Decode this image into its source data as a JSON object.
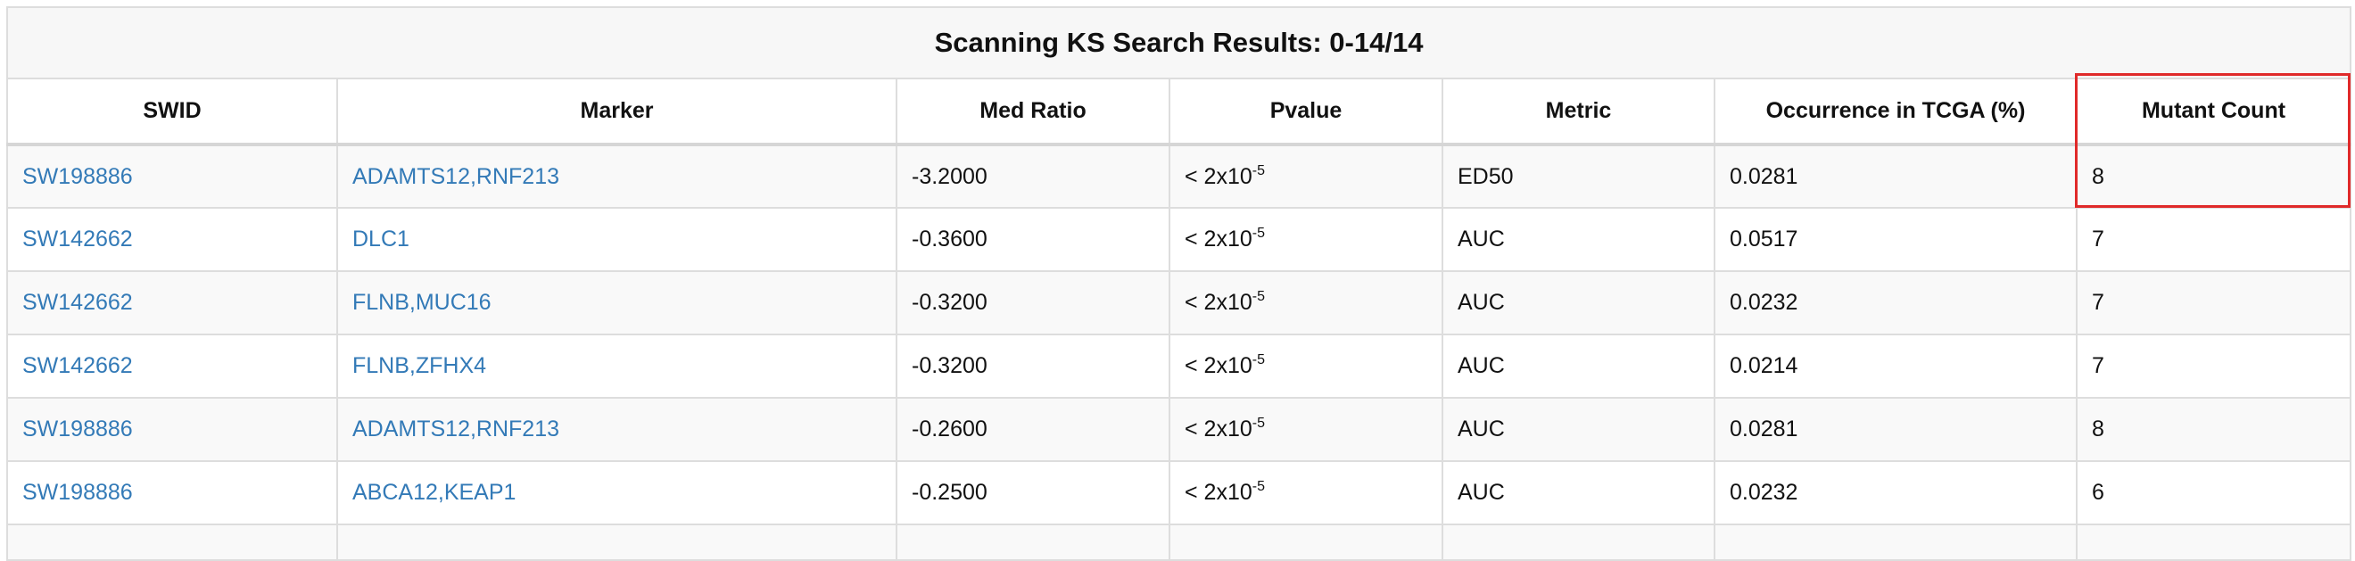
{
  "caption": "Scanning KS Search Results: 0-14/14",
  "columns": [
    "SWID",
    "Marker",
    "Med Ratio",
    "Pvalue",
    "Metric",
    "Occurrence in TCGA (%)",
    "Mutant Count"
  ],
  "pvalue_format": {
    "prefix": "< 2x10",
    "exponent": "-5"
  },
  "rows": [
    {
      "swid": "SW198886",
      "marker": "ADAMTS12,RNF213",
      "med_ratio": "-3.2000",
      "metric": "ED50",
      "occurrence": "0.0281",
      "mutant_count": "8"
    },
    {
      "swid": "SW142662",
      "marker": "DLC1",
      "med_ratio": "-0.3600",
      "metric": "AUC",
      "occurrence": "0.0517",
      "mutant_count": "7"
    },
    {
      "swid": "SW142662",
      "marker": "FLNB,MUC16",
      "med_ratio": "-0.3200",
      "metric": "AUC",
      "occurrence": "0.0232",
      "mutant_count": "7"
    },
    {
      "swid": "SW142662",
      "marker": "FLNB,ZFHX4",
      "med_ratio": "-0.3200",
      "metric": "AUC",
      "occurrence": "0.0214",
      "mutant_count": "7"
    },
    {
      "swid": "SW198886",
      "marker": "ADAMTS12,RNF213",
      "med_ratio": "-0.2600",
      "metric": "AUC",
      "occurrence": "0.0281",
      "mutant_count": "8"
    },
    {
      "swid": "SW198886",
      "marker": "ABCA12,KEAP1",
      "med_ratio": "-0.2500",
      "metric": "AUC",
      "occurrence": "0.0232",
      "mutant_count": "6"
    }
  ],
  "colors": {
    "link": "#337ab7",
    "highlight": "#e02a2a",
    "border": "#dddddd"
  }
}
